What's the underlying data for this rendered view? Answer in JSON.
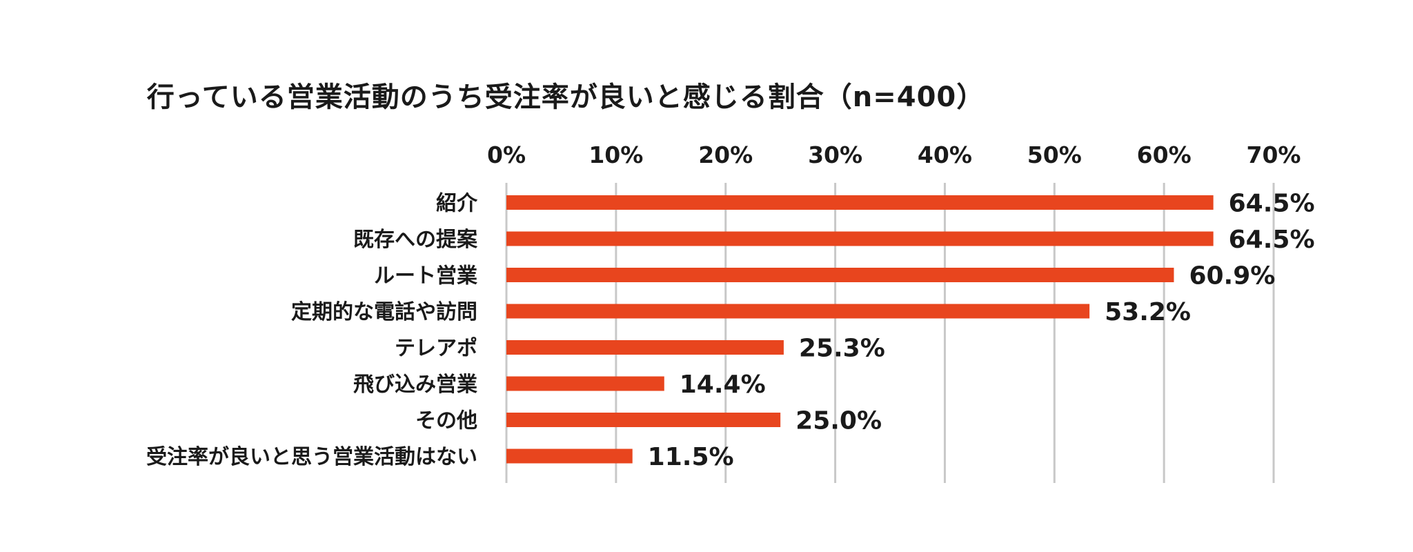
{
  "chart_data": {
    "type": "bar",
    "orientation": "horizontal",
    "title": "行っている営業活動のうち受注率が良いと感じる割合（n=400）",
    "categories": [
      "紹介",
      "既存への提案",
      "ルート営業",
      "定期的な電話や訪問",
      "テレアポ",
      "飛び込み営業",
      "その他",
      "受注率が良いと思う営業活動はない"
    ],
    "values": [
      64.5,
      64.5,
      60.9,
      53.2,
      25.3,
      14.4,
      25.0,
      11.5
    ],
    "value_labels": [
      "64.5%",
      "64.5%",
      "60.9%",
      "53.2%",
      "25.3%",
      "14.4%",
      "25.0%",
      "11.5%"
    ],
    "x_ticks": [
      "0%",
      "10%",
      "20%",
      "30%",
      "40%",
      "50%",
      "60%",
      "70%"
    ],
    "xlim": [
      0,
      70
    ],
    "xlabel": "",
    "ylabel": "",
    "axis_position": "top",
    "grid": true,
    "legend": "none",
    "bar_color": "#e8451e",
    "grid_color": "#c8c8c8"
  }
}
